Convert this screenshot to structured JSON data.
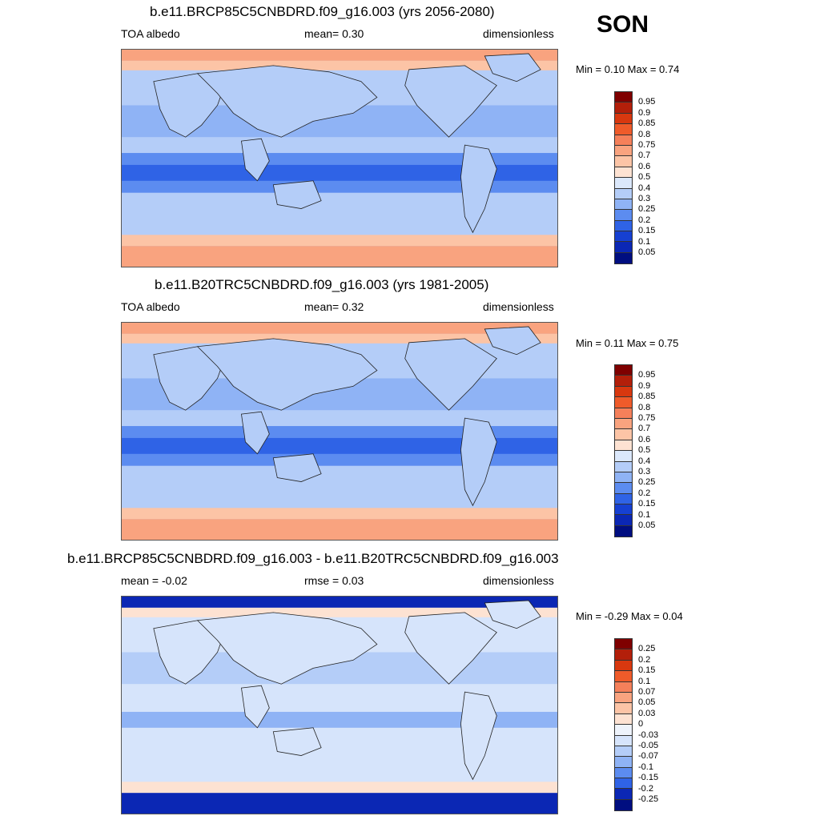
{
  "season": "SON",
  "panels": [
    {
      "title": "b.e11.BRCP85C5CNBDRD.f09_g16.003 (yrs 2056-2080)",
      "left_label": "TOA albedo",
      "center_label": "mean=   0.30",
      "right_label": "dimensionless",
      "minmax": "Min =   0.10 Max =   0.74",
      "colorbar": {
        "labels": [
          "0.95",
          "0.9",
          "0.85",
          "0.8",
          "0.75",
          "0.7",
          "0.6",
          "0.5",
          "0.4",
          "0.3",
          "0.25",
          "0.2",
          "0.15",
          "0.1",
          "0.05"
        ],
        "colors": [
          "#7f0000",
          "#b31f0a",
          "#d8380f",
          "#ef5b2a",
          "#f5805a",
          "#f9a37f",
          "#fcc4a6",
          "#fde2d2",
          "#dbe8fb",
          "#b4cdf8",
          "#8fb3f5",
          "#5c8cf0",
          "#2f63e6",
          "#1640d2",
          "#0b27b4",
          "#000e80"
        ]
      },
      "map_colors": {
        "polar": "#f9a37f",
        "high_lat": "#fcc4a6",
        "mid": "#b4cdf8",
        "band": "#8fb3f5",
        "tropic": "#5c8cf0",
        "deep": "#2f63e6",
        "land": "#b4cdf8",
        "coast": "#222222"
      }
    },
    {
      "title": "b.e11.B20TRC5CNBDRD.f09_g16.003 (yrs 1981-2005)",
      "left_label": "TOA albedo",
      "center_label": "mean=   0.32",
      "right_label": "dimensionless",
      "minmax": "Min =   0.11 Max =   0.75",
      "colorbar": {
        "labels": [
          "0.95",
          "0.9",
          "0.85",
          "0.8",
          "0.75",
          "0.7",
          "0.6",
          "0.5",
          "0.4",
          "0.3",
          "0.25",
          "0.2",
          "0.15",
          "0.1",
          "0.05"
        ],
        "colors": [
          "#7f0000",
          "#b31f0a",
          "#d8380f",
          "#ef5b2a",
          "#f5805a",
          "#f9a37f",
          "#fcc4a6",
          "#fde2d2",
          "#dbe8fb",
          "#b4cdf8",
          "#8fb3f5",
          "#5c8cf0",
          "#2f63e6",
          "#1640d2",
          "#0b27b4",
          "#000e80"
        ]
      },
      "map_colors": {
        "polar": "#f9a37f",
        "high_lat": "#fcc4a6",
        "mid": "#b4cdf8",
        "band": "#8fb3f5",
        "tropic": "#5c8cf0",
        "deep": "#2f63e6",
        "land": "#b4cdf8",
        "coast": "#222222"
      }
    },
    {
      "title": "b.e11.BRCP85C5CNBDRD.f09_g16.003 - b.e11.B20TRC5CNBDRD.f09_g16.003",
      "left_label": "mean =  -0.02",
      "center_label": "rmse =   0.03",
      "right_label": "dimensionless",
      "minmax": "Min =  -0.29 Max =   0.04",
      "colorbar": {
        "labels": [
          "0.25",
          "0.2",
          "0.15",
          "0.1",
          "0.07",
          "0.05",
          "0.03",
          "0",
          "-0.03",
          "-0.05",
          "-0.07",
          "-0.1",
          "-0.15",
          "-0.2",
          "-0.25"
        ],
        "colors": [
          "#7f0000",
          "#b31f0a",
          "#d8380f",
          "#ef5b2a",
          "#f5805a",
          "#f9a37f",
          "#fcc4a6",
          "#fde2d2",
          "#eef3fb",
          "#d6e4fb",
          "#b4cdf8",
          "#8fb3f5",
          "#5c8cf0",
          "#2f63e6",
          "#0b27b4",
          "#000e80"
        ]
      },
      "map_colors": {
        "polar": "#0b27b4",
        "high_lat": "#fde2d2",
        "mid": "#d6e4fb",
        "band": "#b4cdf8",
        "tropic": "#d6e4fb",
        "deep": "#8fb3f5",
        "land": "#d6e4fb",
        "coast": "#222222"
      }
    }
  ]
}
